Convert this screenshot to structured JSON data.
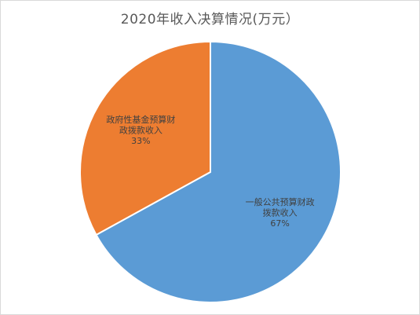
{
  "chart_data": {
    "type": "pie",
    "title": "2020年收入决算情况(万元）",
    "slices": [
      {
        "label_lines": [
          "一般公共预算财政",
          "拨款收入"
        ],
        "percent_label": "67%",
        "value": 67,
        "color": "#5b9bd5"
      },
      {
        "label_lines": [
          "政府性基金预算财",
          "政拨款收入"
        ],
        "percent_label": "33%",
        "value": 33,
        "color": "#ed7d31"
      }
    ],
    "legend": "none"
  }
}
